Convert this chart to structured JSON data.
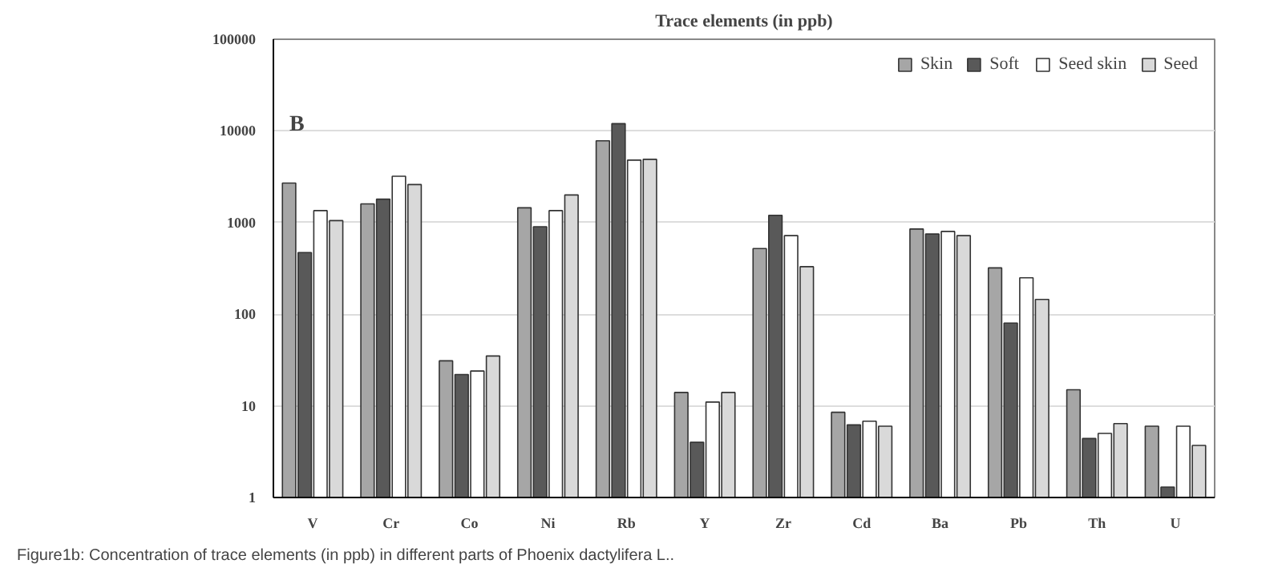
{
  "chart_data": {
    "type": "bar",
    "title": "Trace elements (in ppb)",
    "categories": [
      "V",
      "Cr",
      "Co",
      "Ni",
      "Rb",
      "Y",
      "Zr",
      "Cd",
      "Ba",
      "Pb",
      "Th",
      "U"
    ],
    "series": [
      {
        "name": "Skin",
        "color": "#a6a6a6",
        "values": [
          2700,
          1600,
          31,
          1450,
          7800,
          14,
          520,
          8.5,
          850,
          320,
          15,
          6
        ]
      },
      {
        "name": "Soft",
        "color": "#595959",
        "values": [
          470,
          1800,
          22,
          900,
          12000,
          4,
          1200,
          6.2,
          750,
          80,
          4.4,
          1.3
        ]
      },
      {
        "name": "Seed skin",
        "color": "#ffffff",
        "values": [
          1350,
          3200,
          24,
          1350,
          4800,
          11,
          720,
          6.8,
          800,
          250,
          5,
          6
        ]
      },
      {
        "name": "Seed",
        "color": "#d9d9d9",
        "values": [
          1050,
          2600,
          35,
          2000,
          4900,
          14,
          330,
          6,
          720,
          145,
          6.4,
          3.7
        ]
      }
    ],
    "log": true,
    "ylim": [
      1,
      100000
    ],
    "yticks": [
      1,
      10,
      100,
      1000,
      10000,
      100000
    ],
    "grid": "y",
    "legend": "top right",
    "annotations": [
      "B",
      "Figure1b: Concentration of trace elements (in ppb) in different parts of Phoenix dactylifera L.."
    ]
  }
}
